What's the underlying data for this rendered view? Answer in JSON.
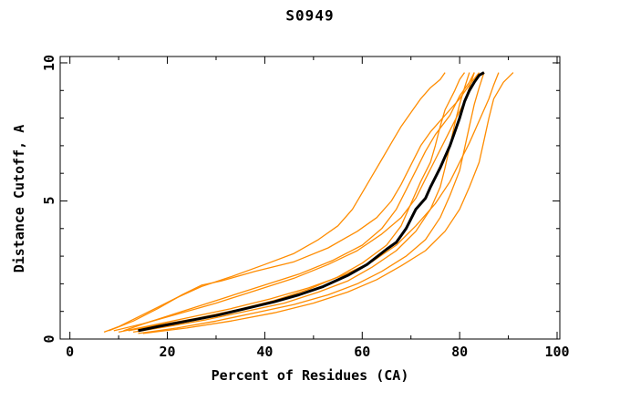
{
  "figure": {
    "title": "S0949",
    "background_color": "#ffffff"
  },
  "chart_data": {
    "type": "line",
    "title": "S0949",
    "xlabel": "Percent of Residues (CA)",
    "ylabel": "Distance Cutoff, A",
    "xlim": [
      0,
      100
    ],
    "ylim": [
      0,
      10
    ],
    "x_major_ticks": [
      0,
      20,
      40,
      60,
      80,
      100
    ],
    "x_minor_ticks": [
      10,
      30,
      50,
      70,
      90
    ],
    "y_major_ticks": [
      0,
      5,
      10
    ],
    "y_minor_ticks": [
      1,
      2,
      3,
      4,
      6,
      7,
      8,
      9
    ],
    "grid": false,
    "legend": "none",
    "colors": {
      "model_lines": "#ff8c00",
      "reference_line": "#000000",
      "axis": "#000000"
    },
    "series": [
      {
        "name": "orange-1",
        "color": "#ff8c00",
        "width": 1.3,
        "points": [
          [
            7,
            0.25
          ],
          [
            10,
            0.45
          ],
          [
            14,
            0.8
          ],
          [
            18,
            1.15
          ],
          [
            22,
            1.5
          ],
          [
            27,
            1.9
          ],
          [
            33,
            2.25
          ],
          [
            40,
            2.7
          ],
          [
            46,
            3.1
          ],
          [
            51,
            3.6
          ],
          [
            55,
            4.1
          ],
          [
            58,
            4.7
          ],
          [
            60,
            5.3
          ],
          [
            62,
            5.9
          ],
          [
            64,
            6.5
          ],
          [
            66,
            7.1
          ],
          [
            68,
            7.7
          ],
          [
            70,
            8.2
          ],
          [
            72,
            8.7
          ],
          [
            74,
            9.1
          ],
          [
            76,
            9.4
          ],
          [
            77,
            9.65
          ]
        ]
      },
      {
        "name": "orange-2",
        "color": "#ff8c00",
        "width": 1.3,
        "points": [
          [
            8,
            0.3
          ],
          [
            13,
            0.65
          ],
          [
            18,
            1.1
          ],
          [
            23,
            1.6
          ],
          [
            27,
            1.95
          ],
          [
            31,
            2.1
          ],
          [
            38,
            2.45
          ],
          [
            46,
            2.8
          ],
          [
            53,
            3.3
          ],
          [
            59,
            3.9
          ],
          [
            63,
            4.4
          ],
          [
            66,
            5.0
          ],
          [
            68,
            5.6
          ],
          [
            70,
            6.3
          ],
          [
            72,
            7.0
          ],
          [
            74,
            7.5
          ],
          [
            77,
            8.1
          ],
          [
            80,
            8.7
          ],
          [
            82,
            9.2
          ],
          [
            84,
            9.65
          ]
        ]
      },
      {
        "name": "orange-3",
        "color": "#ff8c00",
        "width": 1.3,
        "points": [
          [
            9,
            0.3
          ],
          [
            15,
            0.55
          ],
          [
            22,
            0.9
          ],
          [
            30,
            1.3
          ],
          [
            38,
            1.75
          ],
          [
            46,
            2.2
          ],
          [
            53,
            2.7
          ],
          [
            59,
            3.2
          ],
          [
            64,
            3.8
          ],
          [
            68,
            4.4
          ],
          [
            71,
            5.1
          ],
          [
            73,
            5.8
          ],
          [
            75,
            6.5
          ],
          [
            77,
            7.2
          ],
          [
            79,
            7.9
          ],
          [
            81,
            8.6
          ],
          [
            82,
            9.1
          ],
          [
            83,
            9.65
          ]
        ]
      },
      {
        "name": "orange-4",
        "color": "#ff8c00",
        "width": 1.3,
        "points": [
          [
            12,
            0.3
          ],
          [
            18,
            0.5
          ],
          [
            26,
            0.75
          ],
          [
            34,
            1.05
          ],
          [
            42,
            1.4
          ],
          [
            49,
            1.8
          ],
          [
            55,
            2.25
          ],
          [
            60,
            2.75
          ],
          [
            65,
            3.4
          ],
          [
            68,
            4.1
          ],
          [
            70,
            4.9
          ],
          [
            72,
            5.7
          ],
          [
            74,
            6.4
          ],
          [
            75,
            7.0
          ],
          [
            76,
            7.7
          ],
          [
            77,
            8.3
          ],
          [
            79,
            9.0
          ],
          [
            80,
            9.4
          ],
          [
            81,
            9.65
          ]
        ]
      },
      {
        "name": "orange-5",
        "color": "#ff8c00",
        "width": 1.3,
        "points": [
          [
            13,
            0.25
          ],
          [
            20,
            0.45
          ],
          [
            28,
            0.7
          ],
          [
            36,
            1.0
          ],
          [
            44,
            1.3
          ],
          [
            51,
            1.7
          ],
          [
            57,
            2.1
          ],
          [
            62,
            2.6
          ],
          [
            67,
            3.2
          ],
          [
            71,
            3.9
          ],
          [
            74,
            4.7
          ],
          [
            76,
            5.5
          ],
          [
            77,
            6.2
          ],
          [
            78,
            7.0
          ],
          [
            79,
            7.8
          ],
          [
            80,
            8.5
          ],
          [
            81,
            9.1
          ],
          [
            82,
            9.65
          ]
        ]
      },
      {
        "name": "orange-6",
        "color": "#ff8c00",
        "width": 1.3,
        "points": [
          [
            14,
            0.2
          ],
          [
            22,
            0.4
          ],
          [
            30,
            0.65
          ],
          [
            38,
            0.95
          ],
          [
            46,
            1.25
          ],
          [
            53,
            1.6
          ],
          [
            59,
            2.0
          ],
          [
            64,
            2.45
          ],
          [
            69,
            3.0
          ],
          [
            73,
            3.6
          ],
          [
            76,
            4.4
          ],
          [
            78,
            5.2
          ],
          [
            80,
            6.1
          ],
          [
            81,
            6.9
          ],
          [
            82,
            7.7
          ],
          [
            83,
            8.5
          ],
          [
            84,
            9.1
          ],
          [
            85,
            9.65
          ]
        ]
      },
      {
        "name": "orange-7",
        "color": "#ff8c00",
        "width": 1.3,
        "points": [
          [
            15,
            0.2
          ],
          [
            24,
            0.4
          ],
          [
            33,
            0.65
          ],
          [
            42,
            0.95
          ],
          [
            50,
            1.3
          ],
          [
            57,
            1.7
          ],
          [
            63,
            2.15
          ],
          [
            68,
            2.65
          ],
          [
            73,
            3.2
          ],
          [
            77,
            3.9
          ],
          [
            80,
            4.7
          ],
          [
            82,
            5.5
          ],
          [
            84,
            6.4
          ],
          [
            85,
            7.2
          ],
          [
            86,
            8.0
          ],
          [
            87,
            8.7
          ],
          [
            89,
            9.3
          ],
          [
            91,
            9.65
          ]
        ]
      },
      {
        "name": "orange-8",
        "color": "#ff8c00",
        "width": 1.3,
        "points": [
          [
            10,
            0.25
          ],
          [
            17,
            0.5
          ],
          [
            25,
            0.8
          ],
          [
            33,
            1.1
          ],
          [
            41,
            1.45
          ],
          [
            49,
            1.85
          ],
          [
            56,
            2.3
          ],
          [
            62,
            2.8
          ],
          [
            67,
            3.4
          ],
          [
            71,
            4.1
          ],
          [
            75,
            4.9
          ],
          [
            78,
            5.7
          ],
          [
            80,
            6.4
          ],
          [
            82,
            7.1
          ],
          [
            84,
            7.9
          ],
          [
            86,
            8.7
          ],
          [
            87,
            9.2
          ],
          [
            88,
            9.65
          ]
        ]
      },
      {
        "name": "orange-9",
        "color": "#ff8c00",
        "width": 1.3,
        "points": [
          [
            11,
            0.3
          ],
          [
            16,
            0.6
          ],
          [
            23,
            1.0
          ],
          [
            31,
            1.45
          ],
          [
            39,
            1.9
          ],
          [
            47,
            2.35
          ],
          [
            54,
            2.85
          ],
          [
            60,
            3.4
          ],
          [
            64,
            4.0
          ],
          [
            67,
            4.7
          ],
          [
            69,
            5.4
          ],
          [
            71,
            6.1
          ],
          [
            73,
            6.8
          ],
          [
            75,
            7.4
          ],
          [
            78,
            8.1
          ],
          [
            80,
            8.8
          ],
          [
            82,
            9.3
          ],
          [
            83,
            9.65
          ]
        ]
      },
      {
        "name": "black-bold",
        "color": "#000000",
        "width": 3,
        "points": [
          [
            14,
            0.3
          ],
          [
            18,
            0.45
          ],
          [
            24,
            0.65
          ],
          [
            30,
            0.85
          ],
          [
            36,
            1.1
          ],
          [
            42,
            1.35
          ],
          [
            47,
            1.6
          ],
          [
            52,
            1.9
          ],
          [
            57,
            2.3
          ],
          [
            61,
            2.7
          ],
          [
            65,
            3.25
          ],
          [
            67,
            3.5
          ],
          [
            69,
            4.0
          ],
          [
            71,
            4.7
          ],
          [
            73,
            5.1
          ],
          [
            74,
            5.5
          ],
          [
            76,
            6.2
          ],
          [
            77,
            6.6
          ],
          [
            78,
            7.0
          ],
          [
            79,
            7.5
          ],
          [
            80,
            8.0
          ],
          [
            81,
            8.6
          ],
          [
            82,
            9.0
          ],
          [
            83,
            9.3
          ],
          [
            84,
            9.55
          ],
          [
            85,
            9.65
          ]
        ]
      }
    ]
  }
}
